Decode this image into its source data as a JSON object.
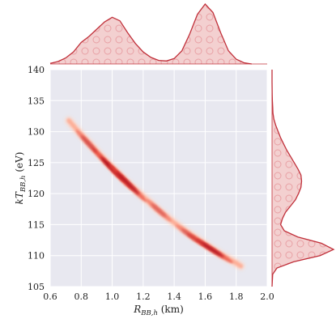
{
  "chart_data": {
    "type": "scatter",
    "subtype": "joint-density",
    "title": "",
    "xlabel": "R_{BB,h} (km)",
    "ylabel": "kT_{BB,h} (eV)",
    "xlim": [
      0.6,
      2.0
    ],
    "ylim": [
      105,
      140
    ],
    "x_ticks": [
      "0.6",
      "0.8",
      "1.0",
      "1.2",
      "1.4",
      "1.6",
      "1.8",
      "2.0"
    ],
    "y_ticks": [
      "105",
      "110",
      "115",
      "120",
      "125",
      "130",
      "135",
      "140"
    ],
    "grid": true,
    "background": "#e8e8f0",
    "colors": {
      "kde_fill": "#f3d0d0",
      "kde_line": "#c0303a",
      "hatch_circle": "#e8a0a4",
      "density_dark": "#b0101a",
      "density_light": "#ffd2c0"
    },
    "joint_curve": {
      "x": [
        0.72,
        0.8,
        0.9,
        1.0,
        1.1,
        1.2,
        1.3,
        1.4,
        1.5,
        1.6,
        1.7,
        1.8,
        1.83
      ],
      "y": [
        131.8,
        129.5,
        126.8,
        124.2,
        121.7,
        119.5,
        117.3,
        115.3,
        113.5,
        111.8,
        110.2,
        108.8,
        108.3
      ]
    },
    "joint_density_peaks": [
      {
        "x": 1.0,
        "y": 124.0,
        "strength": 1.0
      },
      {
        "x": 1.1,
        "y": 121.7,
        "strength": 0.85
      },
      {
        "x": 1.63,
        "y": 111.2,
        "strength": 0.9
      },
      {
        "x": 0.85,
        "y": 128.0,
        "strength": 0.45
      },
      {
        "x": 1.3,
        "y": 117.3,
        "strength": 0.3
      },
      {
        "x": 1.5,
        "y": 113.3,
        "strength": 0.35
      }
    ],
    "marginal_x": {
      "x": [
        0.6,
        0.65,
        0.7,
        0.75,
        0.8,
        0.85,
        0.9,
        0.95,
        1.0,
        1.05,
        1.1,
        1.15,
        1.2,
        1.25,
        1.3,
        1.35,
        1.4,
        1.45,
        1.5,
        1.55,
        1.6,
        1.65,
        1.7,
        1.75,
        1.8,
        1.85,
        1.9
      ],
      "density": [
        0.01,
        0.04,
        0.1,
        0.2,
        0.36,
        0.46,
        0.58,
        0.7,
        0.78,
        0.72,
        0.52,
        0.34,
        0.2,
        0.11,
        0.06,
        0.05,
        0.09,
        0.22,
        0.5,
        0.83,
        1.0,
        0.86,
        0.52,
        0.22,
        0.08,
        0.02,
        0.0
      ]
    },
    "marginal_y": {
      "y": [
        105,
        107,
        108,
        109,
        110,
        111,
        112,
        113,
        114,
        115,
        116,
        117,
        118,
        119,
        120,
        121,
        122,
        123,
        124,
        125,
        126,
        127,
        128,
        129,
        130,
        131,
        132,
        133,
        134,
        135,
        136,
        138,
        140
      ],
      "density": [
        0.0,
        0.01,
        0.08,
        0.35,
        0.78,
        1.0,
        0.8,
        0.42,
        0.2,
        0.14,
        0.17,
        0.22,
        0.3,
        0.38,
        0.43,
        0.47,
        0.48,
        0.47,
        0.42,
        0.36,
        0.3,
        0.24,
        0.19,
        0.14,
        0.1,
        0.06,
        0.03,
        0.015,
        0.01,
        0.005,
        0.002,
        0.0,
        0.0
      ]
    }
  }
}
